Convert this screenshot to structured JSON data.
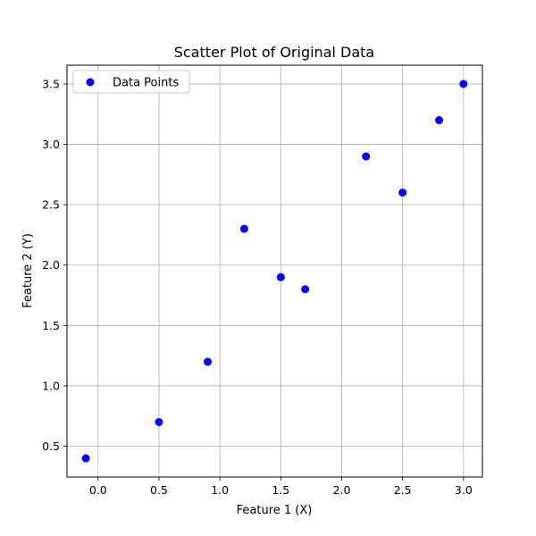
{
  "chart_data": {
    "type": "scatter",
    "title": "Scatter Plot of Original Data",
    "xlabel": "Feature 1 (X)",
    "ylabel": "Feature 2 (Y)",
    "xlim": [
      -0.255,
      3.155
    ],
    "ylim": [
      0.245,
      3.655
    ],
    "xticks": [
      0.0,
      0.5,
      1.0,
      1.5,
      2.0,
      2.5,
      3.0
    ],
    "xtick_labels": [
      "0.0",
      "0.5",
      "1.0",
      "1.5",
      "2.0",
      "2.5",
      "3.0"
    ],
    "yticks": [
      0.5,
      1.0,
      1.5,
      2.0,
      2.5,
      3.0,
      3.5
    ],
    "ytick_labels": [
      "0.5",
      "1.0",
      "1.5",
      "2.0",
      "2.5",
      "3.0",
      "3.5"
    ],
    "grid": true,
    "legend_position": "top-left",
    "series": [
      {
        "name": "Data Points",
        "color": "#0000ff",
        "x": [
          -0.1,
          0.5,
          0.9,
          1.2,
          1.5,
          1.7,
          2.2,
          2.5,
          2.8,
          3.0
        ],
        "y": [
          0.4,
          0.7,
          1.2,
          2.3,
          1.9,
          1.8,
          2.9,
          2.6,
          3.2,
          3.5
        ]
      }
    ]
  }
}
